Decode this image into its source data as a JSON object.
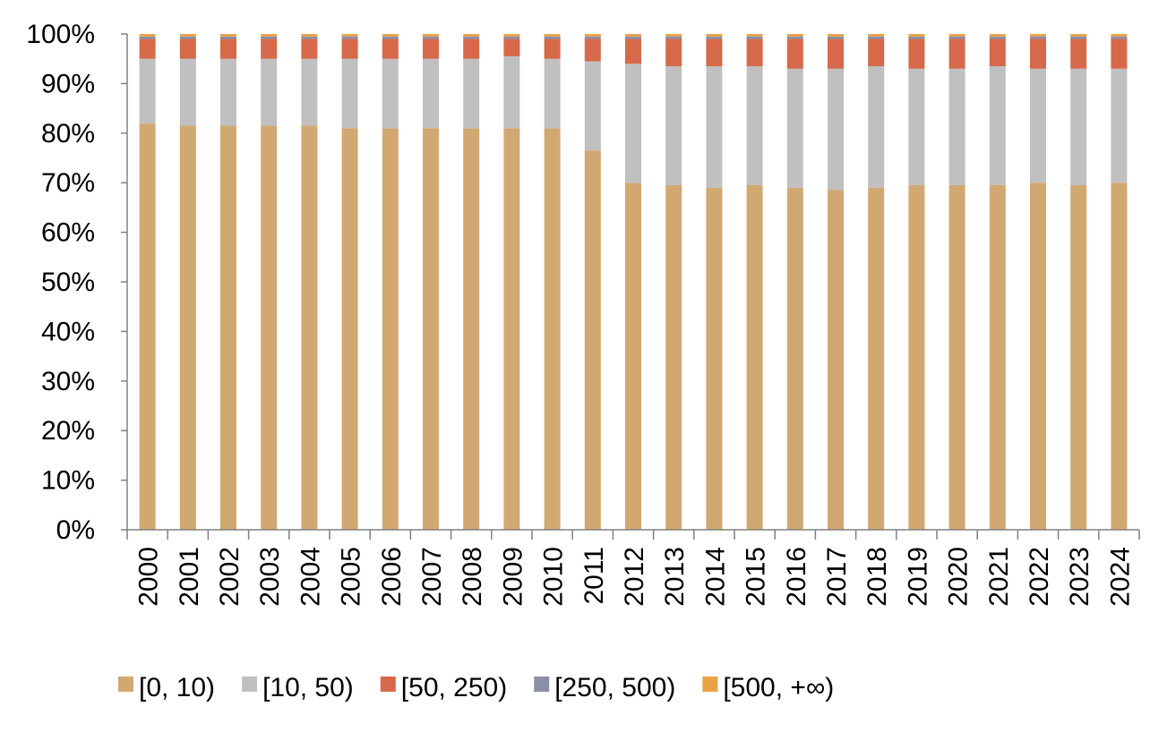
{
  "chart_data": {
    "type": "bar",
    "stacked": true,
    "percent": true,
    "categories": [
      "2000",
      "2001",
      "2002",
      "2003",
      "2004",
      "2005",
      "2006",
      "2007",
      "2008",
      "2009",
      "2010",
      "2011",
      "2012",
      "2013",
      "2014",
      "2015",
      "2016",
      "2017",
      "2018",
      "2019",
      "2020",
      "2021",
      "2022",
      "2023",
      "2024"
    ],
    "series": [
      {
        "name": "[0, 10)",
        "color": "#D2A872",
        "values": [
          82,
          81.5,
          81.5,
          81.5,
          81.5,
          81,
          81,
          81,
          81,
          81,
          81,
          76.5,
          70,
          69.5,
          69,
          69.5,
          69,
          68.5,
          69,
          69.5,
          69.5,
          69.5,
          70,
          69.5,
          70
        ]
      },
      {
        "name": "[10, 50)",
        "color": "#C0C0C0",
        "values": [
          13,
          13.5,
          13.5,
          13.5,
          13.5,
          14,
          14,
          14,
          14,
          14.5,
          14,
          18,
          24,
          24,
          24.5,
          24,
          24,
          24.5,
          24.5,
          23.5,
          23.5,
          24,
          23,
          23.5,
          23
        ]
      },
      {
        "name": "[50, 250)",
        "color": "#D6694A",
        "values": [
          4,
          4,
          4,
          4,
          4,
          4,
          4,
          4,
          4,
          3.5,
          4,
          4.5,
          5,
          5.5,
          5.5,
          5.5,
          6,
          6,
          5.5,
          6,
          6,
          5.5,
          6,
          6,
          6
        ]
      },
      {
        "name": "[250, 500)",
        "color": "#8C8FA6",
        "values": [
          0.5,
          0.5,
          0.5,
          0.5,
          0.5,
          0.5,
          0.5,
          0.5,
          0.5,
          0.5,
          0.5,
          0.5,
          0.5,
          0.5,
          0.5,
          0.5,
          0.5,
          0.5,
          0.5,
          0.5,
          0.5,
          0.5,
          0.5,
          0.5,
          0.5
        ]
      },
      {
        "name": "[500, +∞)",
        "color": "#E9A146",
        "values": [
          0.5,
          0.5,
          0.5,
          0.5,
          0.5,
          0.5,
          0.5,
          0.5,
          0.5,
          0.5,
          0.5,
          0.5,
          0.5,
          0.5,
          0.5,
          0.5,
          0.5,
          0.5,
          0.5,
          0.5,
          0.5,
          0.5,
          0.5,
          0.5,
          0.5
        ]
      }
    ],
    "y_ticks": [
      "0%",
      "10%",
      "20%",
      "30%",
      "40%",
      "50%",
      "60%",
      "70%",
      "80%",
      "90%",
      "100%"
    ],
    "ylim": [
      0,
      100
    ],
    "grid": false,
    "legend_position": "bottom"
  }
}
